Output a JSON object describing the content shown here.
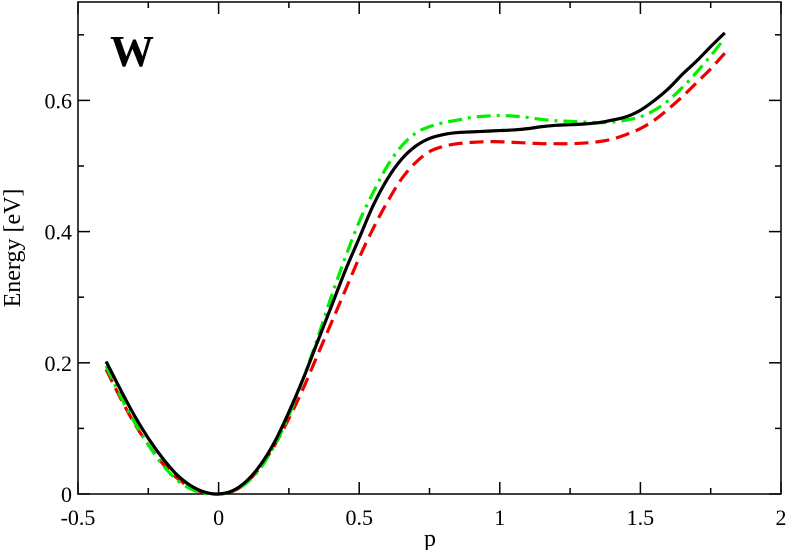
{
  "chart_data": {
    "type": "line",
    "panel_label": "W",
    "xlabel": "p",
    "ylabel": "Energy [eV]",
    "xlim": [
      -0.5,
      2
    ],
    "ylim": [
      0,
      0.75
    ],
    "x_ticks": [
      -0.5,
      0,
      0.5,
      1,
      1.5,
      2
    ],
    "x_tick_labels": [
      "-0.5",
      "0",
      "0.5",
      "1",
      "1.5",
      "2"
    ],
    "y_ticks": [
      0,
      0.2,
      0.4,
      0.6
    ],
    "y_tick_labels": [
      "0",
      "0.2",
      "0.4",
      "0.6"
    ],
    "grid": false,
    "legend": false,
    "series": [
      {
        "color": "#000000",
        "style": "solid",
        "x": [
          -0.4,
          -0.35,
          -0.3,
          -0.25,
          -0.2,
          -0.15,
          -0.1,
          -0.05,
          0,
          0.05,
          0.1,
          0.15,
          0.2,
          0.25,
          0.3,
          0.35,
          0.4,
          0.45,
          0.5,
          0.55,
          0.6,
          0.65,
          0.7,
          0.75,
          0.8,
          0.85,
          0.9,
          0.95,
          1.0,
          1.05,
          1.1,
          1.15,
          1.2,
          1.25,
          1.3,
          1.35,
          1.4,
          1.45,
          1.5,
          1.55,
          1.6,
          1.65,
          1.7,
          1.75,
          1.8
        ],
        "y": [
          0.202,
          0.16,
          0.12,
          0.085,
          0.055,
          0.03,
          0.013,
          0.003,
          0.0,
          0.005,
          0.02,
          0.045,
          0.08,
          0.125,
          0.175,
          0.23,
          0.285,
          0.34,
          0.39,
          0.44,
          0.48,
          0.51,
          0.53,
          0.542,
          0.548,
          0.551,
          0.552,
          0.553,
          0.554,
          0.555,
          0.557,
          0.56,
          0.562,
          0.563,
          0.564,
          0.566,
          0.57,
          0.575,
          0.585,
          0.6,
          0.618,
          0.64,
          0.66,
          0.682,
          0.703
        ]
      },
      {
        "color": "#00ee00",
        "style": "dash-dot",
        "x": [
          -0.4,
          -0.35,
          -0.3,
          -0.25,
          -0.2,
          -0.15,
          -0.1,
          -0.05,
          0,
          0.05,
          0.1,
          0.15,
          0.2,
          0.25,
          0.3,
          0.35,
          0.4,
          0.45,
          0.5,
          0.55,
          0.6,
          0.65,
          0.7,
          0.75,
          0.8,
          0.85,
          0.9,
          0.95,
          1.0,
          1.05,
          1.1,
          1.15,
          1.2,
          1.25,
          1.3,
          1.35,
          1.4,
          1.45,
          1.5,
          1.55,
          1.6,
          1.65,
          1.7,
          1.75,
          1.8
        ],
        "y": [
          0.195,
          0.15,
          0.11,
          0.075,
          0.045,
          0.022,
          0.008,
          0.001,
          0.0,
          0.004,
          0.017,
          0.04,
          0.075,
          0.12,
          0.175,
          0.235,
          0.3,
          0.36,
          0.415,
          0.46,
          0.5,
          0.53,
          0.55,
          0.56,
          0.566,
          0.57,
          0.574,
          0.576,
          0.577,
          0.576,
          0.574,
          0.571,
          0.569,
          0.568,
          0.567,
          0.566,
          0.567,
          0.57,
          0.575,
          0.585,
          0.6,
          0.62,
          0.643,
          0.668,
          0.695
        ]
      },
      {
        "color": "#ee0000",
        "style": "dashed",
        "x": [
          -0.4,
          -0.35,
          -0.3,
          -0.25,
          -0.2,
          -0.15,
          -0.1,
          -0.05,
          0,
          0.05,
          0.1,
          0.15,
          0.2,
          0.25,
          0.3,
          0.35,
          0.4,
          0.45,
          0.5,
          0.55,
          0.6,
          0.65,
          0.7,
          0.75,
          0.8,
          0.85,
          0.9,
          0.95,
          1.0,
          1.05,
          1.1,
          1.15,
          1.2,
          1.25,
          1.3,
          1.35,
          1.4,
          1.45,
          1.5,
          1.55,
          1.6,
          1.65,
          1.7,
          1.75,
          1.8
        ],
        "y": [
          0.19,
          0.147,
          0.108,
          0.075,
          0.047,
          0.025,
          0.01,
          0.002,
          0.0,
          0.004,
          0.018,
          0.042,
          0.075,
          0.115,
          0.16,
          0.21,
          0.26,
          0.31,
          0.36,
          0.405,
          0.445,
          0.48,
          0.505,
          0.522,
          0.53,
          0.534,
          0.536,
          0.537,
          0.537,
          0.536,
          0.535,
          0.534,
          0.534,
          0.534,
          0.535,
          0.537,
          0.541,
          0.548,
          0.557,
          0.57,
          0.587,
          0.606,
          0.627,
          0.648,
          0.672
        ]
      }
    ]
  }
}
